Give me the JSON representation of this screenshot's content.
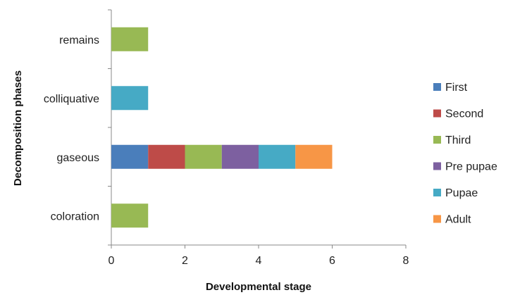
{
  "chart_data": {
    "type": "bar",
    "orientation": "horizontal",
    "stacked": true,
    "xlabel": "Developmental stage",
    "ylabel": "Decomposition phases",
    "xlim": [
      0,
      8
    ],
    "xticks": [
      "0",
      "2",
      "4",
      "6",
      "8"
    ],
    "categories": [
      "coloration",
      "gaseous",
      "colliquative",
      "remains"
    ],
    "series": [
      {
        "name": "First",
        "color": "#4a7ebb",
        "values": [
          0,
          1,
          0,
          0
        ]
      },
      {
        "name": "Second",
        "color": "#be4b48",
        "values": [
          0,
          1,
          0,
          0
        ]
      },
      {
        "name": "Third",
        "color": "#98b954",
        "values": [
          1,
          1,
          0,
          1
        ]
      },
      {
        "name": "Pre pupae",
        "color": "#7d60a0",
        "values": [
          0,
          1,
          0,
          0
        ]
      },
      {
        "name": "Pupae",
        "color": "#46aac5",
        "values": [
          0,
          1,
          1,
          0
        ]
      },
      {
        "name": "Adult",
        "color": "#f79646",
        "values": [
          0,
          1,
          0,
          0
        ]
      }
    ],
    "grid": false,
    "legend_position": "right"
  }
}
